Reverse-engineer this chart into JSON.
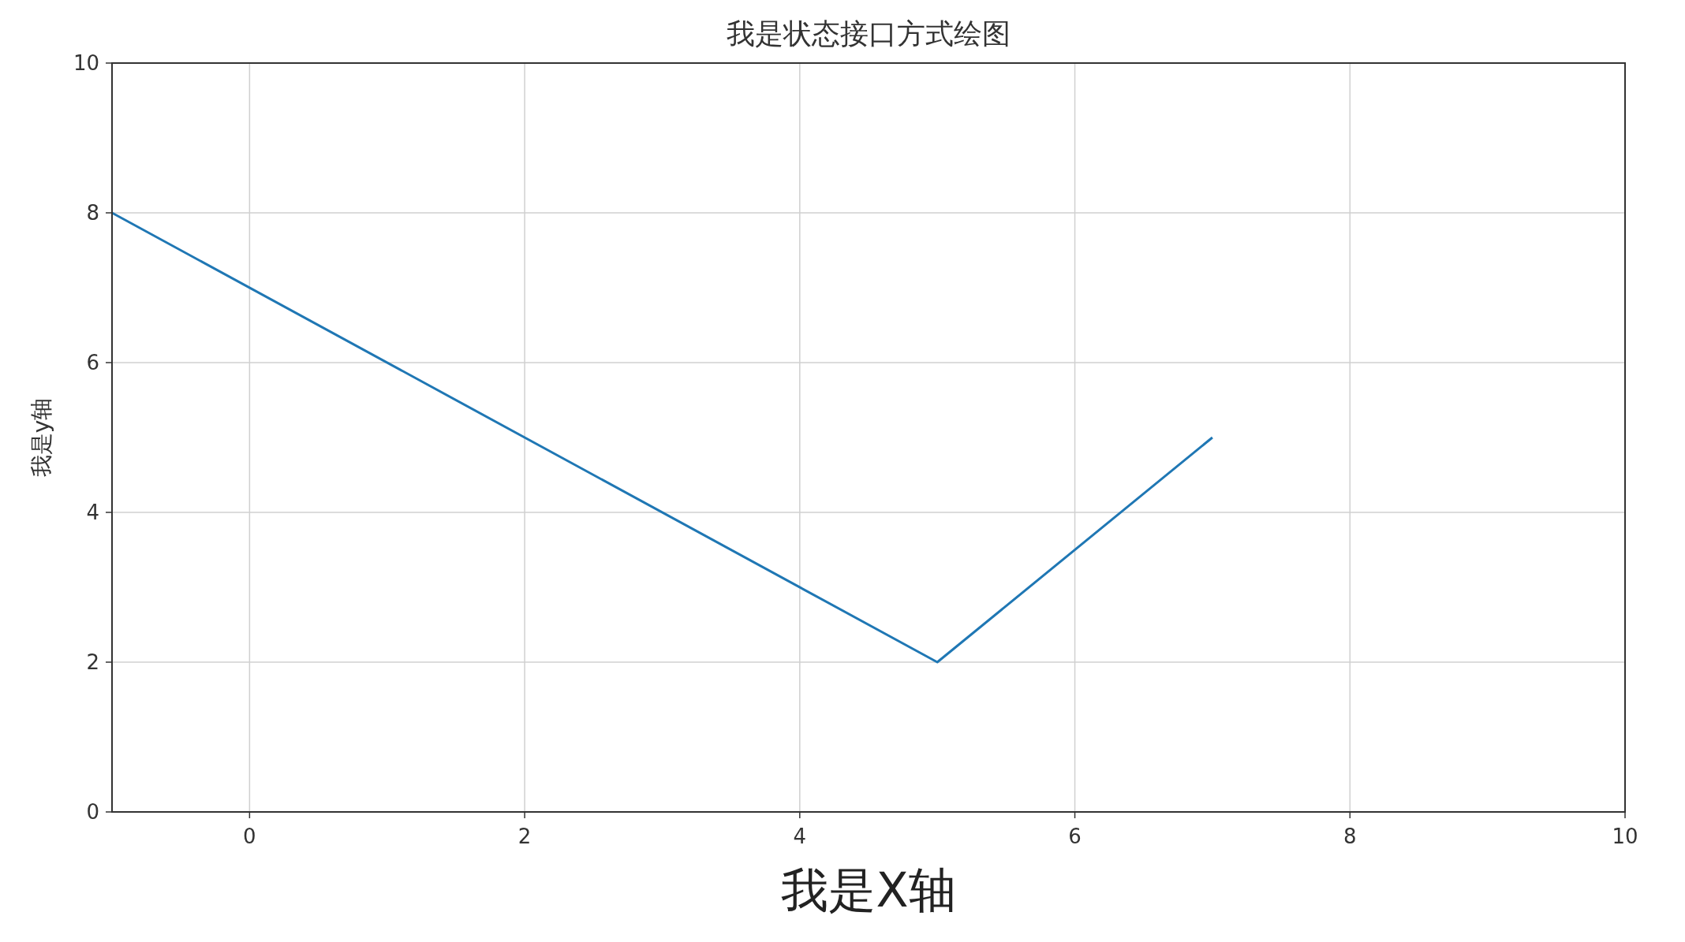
{
  "chart_data": {
    "type": "line",
    "title": "我是状态接口方式绘图",
    "xlabel": "我是X轴",
    "ylabel": "我是y轴",
    "x": [
      -1,
      5,
      7
    ],
    "series": [
      {
        "color": "#1f77b4",
        "values": [
          8,
          2,
          5
        ]
      }
    ],
    "xlim": [
      -1,
      10
    ],
    "xticks": [
      0,
      2,
      4,
      6,
      8,
      10
    ],
    "ylim": [
      0,
      10
    ],
    "yticks": [
      0,
      2,
      4,
      6,
      8,
      10
    ],
    "grid": true
  }
}
